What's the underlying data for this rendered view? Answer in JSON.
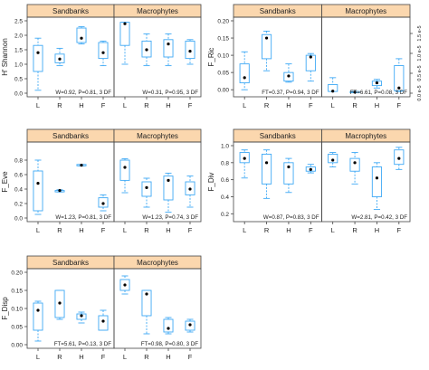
{
  "chart_data": [
    {
      "type": "box",
      "ylabel": "H' Shannon",
      "ylim": [
        0,
        2.5
      ],
      "yticks": [
        0.0,
        0.5,
        1.0,
        1.5,
        2.0,
        2.5
      ],
      "categories": [
        "L",
        "R",
        "H",
        "F"
      ],
      "facets": [
        {
          "label": "Sandbanks",
          "stat": "W=0.92, P=0.81, 3 DF",
          "boxes": [
            {
              "min": 0.1,
              "q1": 0.75,
              "median": 1.4,
              "q3": 1.65,
              "max": 1.9
            },
            {
              "min": 0.95,
              "q1": 1.05,
              "median": 1.18,
              "q3": 1.35,
              "max": 1.55
            },
            {
              "min": 1.7,
              "q1": 1.75,
              "median": 1.9,
              "q3": 2.25,
              "max": 2.3
            },
            {
              "min": 0.95,
              "q1": 1.2,
              "median": 1.4,
              "q3": 1.75,
              "max": 1.8
            }
          ]
        },
        {
          "label": "Macrophytes",
          "stat": "W=0.31, P=0.95, 3 DF",
          "boxes": [
            {
              "min": 1.0,
              "q1": 1.65,
              "median": 2.4,
              "q3": 2.45,
              "max": 2.45
            },
            {
              "min": 0.95,
              "q1": 1.25,
              "median": 1.5,
              "q3": 1.8,
              "max": 2.05
            },
            {
              "min": 0.95,
              "q1": 1.25,
              "median": 1.7,
              "q3": 1.85,
              "max": 2.05
            },
            {
              "min": 1.0,
              "q1": 1.2,
              "median": 1.45,
              "q3": 1.8,
              "max": 1.85
            }
          ]
        }
      ]
    },
    {
      "type": "box",
      "ylabel": "F_Ric",
      "ylim": [
        -0.01,
        0.2
      ],
      "yticks": [
        0.0,
        0.05,
        0.1,
        0.15,
        0.2
      ],
      "yticks_right": [
        0.0,
        0.5,
        1.0,
        1.5
      ],
      "right_tick_prefix": "e-5",
      "categories": [
        "L",
        "R",
        "H",
        "F"
      ],
      "facets": [
        {
          "label": "Sandbanks",
          "stat": "FT=0.37, P=0.94, 3 DF",
          "boxes": [
            {
              "min": 0.0,
              "q1": 0.02,
              "median": 0.035,
              "q3": 0.075,
              "max": 0.11
            },
            {
              "min": 0.055,
              "q1": 0.09,
              "median": 0.15,
              "q3": 0.16,
              "max": 0.17
            },
            {
              "min": 0.022,
              "q1": 0.025,
              "median": 0.04,
              "q3": 0.05,
              "max": 0.075
            },
            {
              "min": 0.025,
              "q1": 0.055,
              "median": 0.095,
              "q3": 0.1,
              "max": 0.105
            }
          ]
        },
        {
          "label": "Macrophytes",
          "stat": "FT=6.61, P=0.08, 3 DF",
          "boxes": [
            {
              "min": -0.005,
              "q1": -0.005,
              "median": -0.004,
              "q3": 0.015,
              "max": 0.035
            },
            {
              "min": -0.007,
              "q1": -0.007,
              "median": -0.007,
              "q3": -0.005,
              "max": -0.005
            },
            {
              "min": 0.005,
              "q1": 0.012,
              "median": 0.02,
              "q3": 0.025,
              "max": 0.03
            },
            {
              "min": -0.005,
              "q1": -0.003,
              "median": 0.005,
              "q3": 0.07,
              "max": 0.09
            }
          ]
        }
      ]
    },
    {
      "type": "box",
      "ylabel": "F_Eve",
      "ylim": [
        0,
        1.0
      ],
      "yticks": [
        0.0,
        0.2,
        0.4,
        0.6,
        0.8
      ],
      "categories": [
        "L",
        "R",
        "H",
        "F"
      ],
      "facets": [
        {
          "label": "Sandbanks",
          "stat": "W=1.23, P=0.81, 3 DF",
          "boxes": [
            {
              "min": 0.05,
              "q1": 0.1,
              "median": 0.48,
              "q3": 0.65,
              "max": 0.8
            },
            {
              "min": 0.36,
              "q1": 0.37,
              "median": 0.38,
              "q3": 0.38,
              "max": 0.39
            },
            {
              "min": 0.72,
              "q1": 0.73,
              "median": 0.73,
              "q3": 0.74,
              "max": 0.74
            },
            {
              "min": 0.1,
              "q1": 0.15,
              "median": 0.2,
              "q3": 0.28,
              "max": 0.32
            }
          ]
        },
        {
          "label": "Macrophytes",
          "stat": "W=1.23, P=0.74, 3 DF",
          "boxes": [
            {
              "min": 0.35,
              "q1": 0.52,
              "median": 0.7,
              "q3": 0.8,
              "max": 0.82
            },
            {
              "min": 0.15,
              "q1": 0.3,
              "median": 0.42,
              "q3": 0.5,
              "max": 0.55
            },
            {
              "min": 0.08,
              "q1": 0.25,
              "median": 0.52,
              "q3": 0.58,
              "max": 0.62
            },
            {
              "min": 0.15,
              "q1": 0.32,
              "median": 0.4,
              "q3": 0.5,
              "max": 0.58
            }
          ]
        }
      ]
    },
    {
      "type": "box",
      "ylabel": "F_Div",
      "ylim": [
        0.15,
        1.0
      ],
      "yticks": [
        0.2,
        0.4,
        0.6,
        0.8,
        1.0
      ],
      "categories": [
        "L",
        "R",
        "H",
        "F"
      ],
      "facets": [
        {
          "label": "Sandbanks",
          "stat": "W=0.87, P=0.83, 3 DF",
          "boxes": [
            {
              "min": 0.62,
              "q1": 0.8,
              "median": 0.85,
              "q3": 0.92,
              "max": 0.95
            },
            {
              "min": 0.38,
              "q1": 0.55,
              "median": 0.8,
              "q3": 0.9,
              "max": 0.95
            },
            {
              "min": 0.45,
              "q1": 0.55,
              "median": 0.75,
              "q3": 0.8,
              "max": 0.85
            },
            {
              "min": 0.68,
              "q1": 0.7,
              "median": 0.72,
              "q3": 0.75,
              "max": 0.78
            }
          ]
        },
        {
          "label": "Macrophytes",
          "stat": "W=2.81, P=0.42, 3 DF",
          "boxes": [
            {
              "min": 0.75,
              "q1": 0.8,
              "median": 0.83,
              "q3": 0.9,
              "max": 0.92
            },
            {
              "min": 0.55,
              "q1": 0.7,
              "median": 0.8,
              "q3": 0.85,
              "max": 0.92
            },
            {
              "min": 0.25,
              "q1": 0.4,
              "median": 0.62,
              "q3": 0.75,
              "max": 0.8
            },
            {
              "min": 0.72,
              "q1": 0.78,
              "median": 0.85,
              "q3": 0.95,
              "max": 0.98
            }
          ]
        }
      ]
    },
    {
      "type": "box",
      "ylabel": "F_Disp",
      "ylim": [
        0.0,
        0.2
      ],
      "yticks": [
        0.0,
        0.05,
        0.1,
        0.15,
        0.2
      ],
      "categories": [
        "L",
        "R",
        "H",
        "F"
      ],
      "facets": [
        {
          "label": "Sandbanks",
          "stat": "FT=5.61, P=0.13, 3 DF",
          "boxes": [
            {
              "min": 0.01,
              "q1": 0.04,
              "median": 0.095,
              "q3": 0.115,
              "max": 0.12
            },
            {
              "min": 0.07,
              "q1": 0.075,
              "median": 0.115,
              "q3": 0.15,
              "max": 0.15
            },
            {
              "min": 0.06,
              "q1": 0.07,
              "median": 0.08,
              "q3": 0.085,
              "max": 0.09
            },
            {
              "min": 0.04,
              "q1": 0.04,
              "median": 0.065,
              "q3": 0.08,
              "max": 0.095
            }
          ]
        },
        {
          "label": "Macrophytes",
          "stat": "FT=0.98, P=0.80, 3 DF",
          "boxes": [
            {
              "min": 0.14,
              "q1": 0.15,
              "median": 0.165,
              "q3": 0.18,
              "max": 0.19
            },
            {
              "min": 0.03,
              "q1": 0.08,
              "median": 0.14,
              "q3": 0.15,
              "max": 0.15
            },
            {
              "min": 0.03,
              "q1": 0.035,
              "median": 0.045,
              "q3": 0.07,
              "max": 0.075
            },
            {
              "min": 0.035,
              "q1": 0.04,
              "median": 0.055,
              "q3": 0.065,
              "max": 0.07
            }
          ]
        }
      ]
    }
  ],
  "colors": {
    "strip": "#fbd7ae",
    "box": "#3fa9f5",
    "frame": "#444444",
    "point": "#000000"
  }
}
